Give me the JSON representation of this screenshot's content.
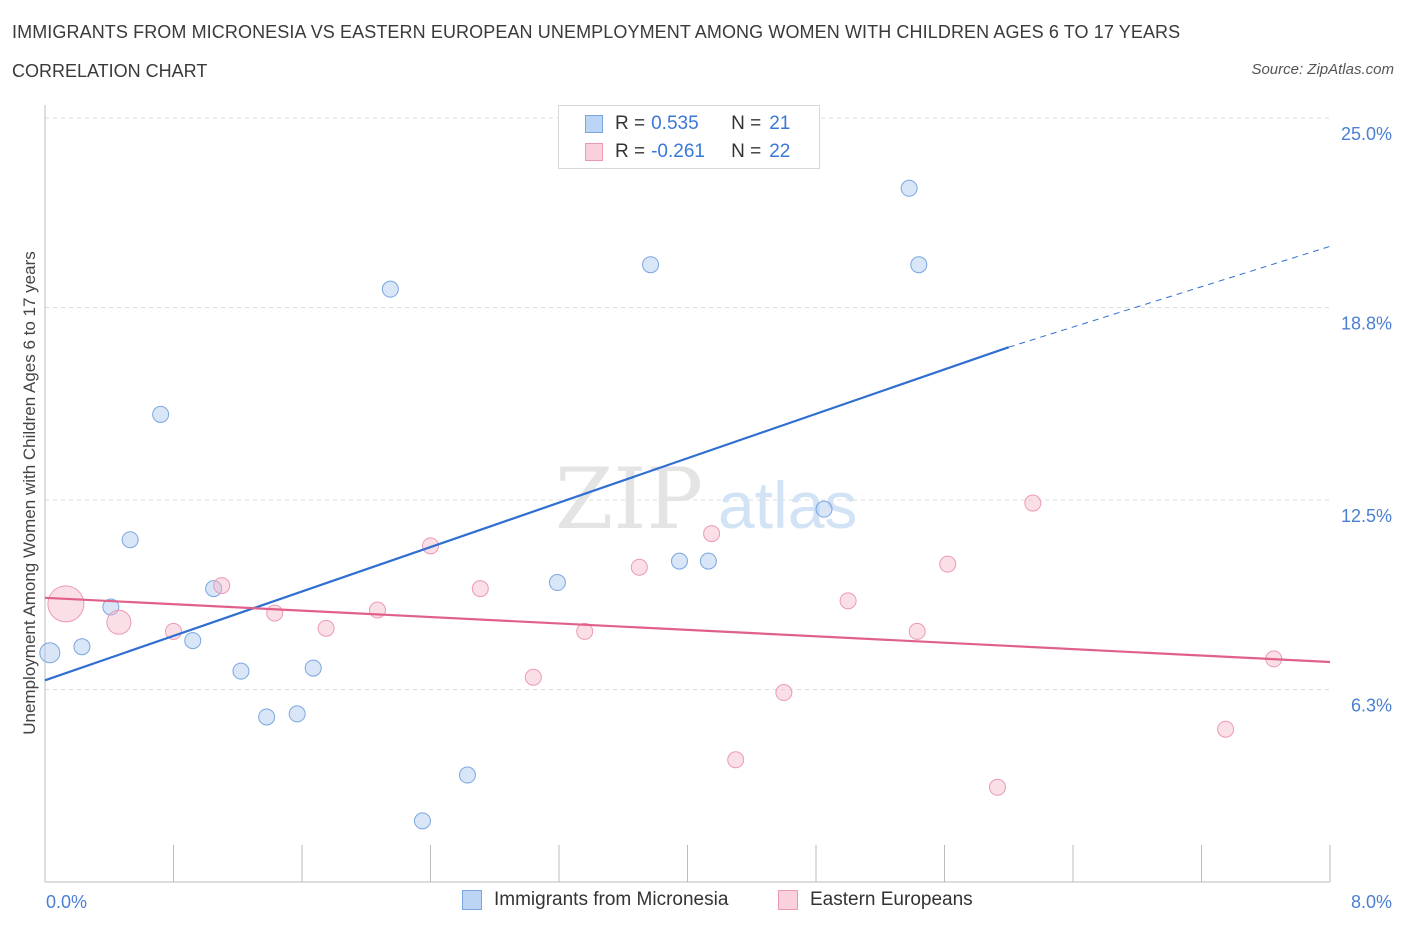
{
  "header": {
    "title": "IMMIGRANTS FROM MICRONESIA VS EASTERN EUROPEAN UNEMPLOYMENT AMONG WOMEN WITH CHILDREN AGES 6 TO 17 YEARS",
    "subtitle": "CORRELATION CHART",
    "source": "Source: ZipAtlas.com"
  },
  "legend": {
    "rows": [
      {
        "r_label": "R =",
        "r_value": "0.535",
        "n_label": "N =",
        "n_value": "21",
        "color": "#a8c8f0"
      },
      {
        "r_label": "R =",
        "r_value": "-0.261",
        "n_label": "N =",
        "n_value": "22",
        "color": "#f5b8ca"
      }
    ]
  },
  "bottom_legend": {
    "series1": "Immigrants from Micronesia",
    "series2": "Eastern Europeans"
  },
  "watermark": {
    "zip": "ZIP",
    "atlas": "atlas"
  },
  "chart_data": {
    "type": "scatter",
    "xlabel": "",
    "ylabel": "Unemployment Among Women with Children Ages 6 to 17 years",
    "xlim": [
      0,
      8
    ],
    "ylim": [
      0,
      25
    ],
    "x_tick_labels": [
      "0.0%",
      "8.0%"
    ],
    "y_ticks": [
      6.3,
      12.5,
      18.8,
      25.0
    ],
    "y_tick_labels": [
      "6.3%",
      "12.5%",
      "18.8%",
      "25.0%"
    ],
    "grid": true,
    "legend_position": "top-center",
    "series": [
      {
        "name": "Immigrants from Micronesia",
        "color": "#a8c8f0",
        "line_color": "#2f6fd1",
        "trend": {
          "x0": 0.0,
          "y0": 6.6,
          "x1": 6.0,
          "y1": 17.5,
          "dashed_to_x": 8.0,
          "dashed_to_y": 20.8
        },
        "points": [
          {
            "x": 0.03,
            "y": 7.5,
            "size": 10
          },
          {
            "x": 0.23,
            "y": 7.7
          },
          {
            "x": 0.41,
            "y": 9.0
          },
          {
            "x": 0.53,
            "y": 11.2
          },
          {
            "x": 0.72,
            "y": 15.3
          },
          {
            "x": 0.92,
            "y": 7.9
          },
          {
            "x": 1.05,
            "y": 9.6
          },
          {
            "x": 1.22,
            "y": 6.9
          },
          {
            "x": 1.38,
            "y": 5.4
          },
          {
            "x": 1.57,
            "y": 5.5
          },
          {
            "x": 1.67,
            "y": 7.0
          },
          {
            "x": 2.15,
            "y": 19.4
          },
          {
            "x": 2.35,
            "y": 2.0
          },
          {
            "x": 2.63,
            "y": 3.5
          },
          {
            "x": 3.19,
            "y": 9.8
          },
          {
            "x": 3.77,
            "y": 20.2
          },
          {
            "x": 3.95,
            "y": 10.5
          },
          {
            "x": 4.13,
            "y": 10.5
          },
          {
            "x": 4.85,
            "y": 12.2
          },
          {
            "x": 5.38,
            "y": 22.7
          },
          {
            "x": 5.44,
            "y": 20.2
          }
        ]
      },
      {
        "name": "Eastern Europeans",
        "color": "#f5b8ca",
        "line_color": "#e0608a",
        "trend": {
          "x0": 0.0,
          "y0": 9.3,
          "x1": 8.0,
          "y1": 7.2
        },
        "points": [
          {
            "x": 0.13,
            "y": 9.1,
            "size": 18
          },
          {
            "x": 0.46,
            "y": 8.5,
            "size": 12
          },
          {
            "x": 0.8,
            "y": 8.2
          },
          {
            "x": 1.1,
            "y": 9.7
          },
          {
            "x": 1.43,
            "y": 8.8
          },
          {
            "x": 1.75,
            "y": 8.3
          },
          {
            "x": 2.07,
            "y": 8.9
          },
          {
            "x": 2.4,
            "y": 11.0
          },
          {
            "x": 2.71,
            "y": 9.6
          },
          {
            "x": 3.04,
            "y": 6.7
          },
          {
            "x": 3.36,
            "y": 8.2
          },
          {
            "x": 3.7,
            "y": 10.3
          },
          {
            "x": 4.15,
            "y": 11.4
          },
          {
            "x": 4.3,
            "y": 4.0
          },
          {
            "x": 4.6,
            "y": 6.2
          },
          {
            "x": 5.0,
            "y": 9.2
          },
          {
            "x": 5.43,
            "y": 8.2
          },
          {
            "x": 5.62,
            "y": 10.4
          },
          {
            "x": 5.93,
            "y": 3.1
          },
          {
            "x": 6.15,
            "y": 12.4
          },
          {
            "x": 7.35,
            "y": 5.0
          },
          {
            "x": 7.65,
            "y": 7.3
          }
        ]
      }
    ]
  }
}
